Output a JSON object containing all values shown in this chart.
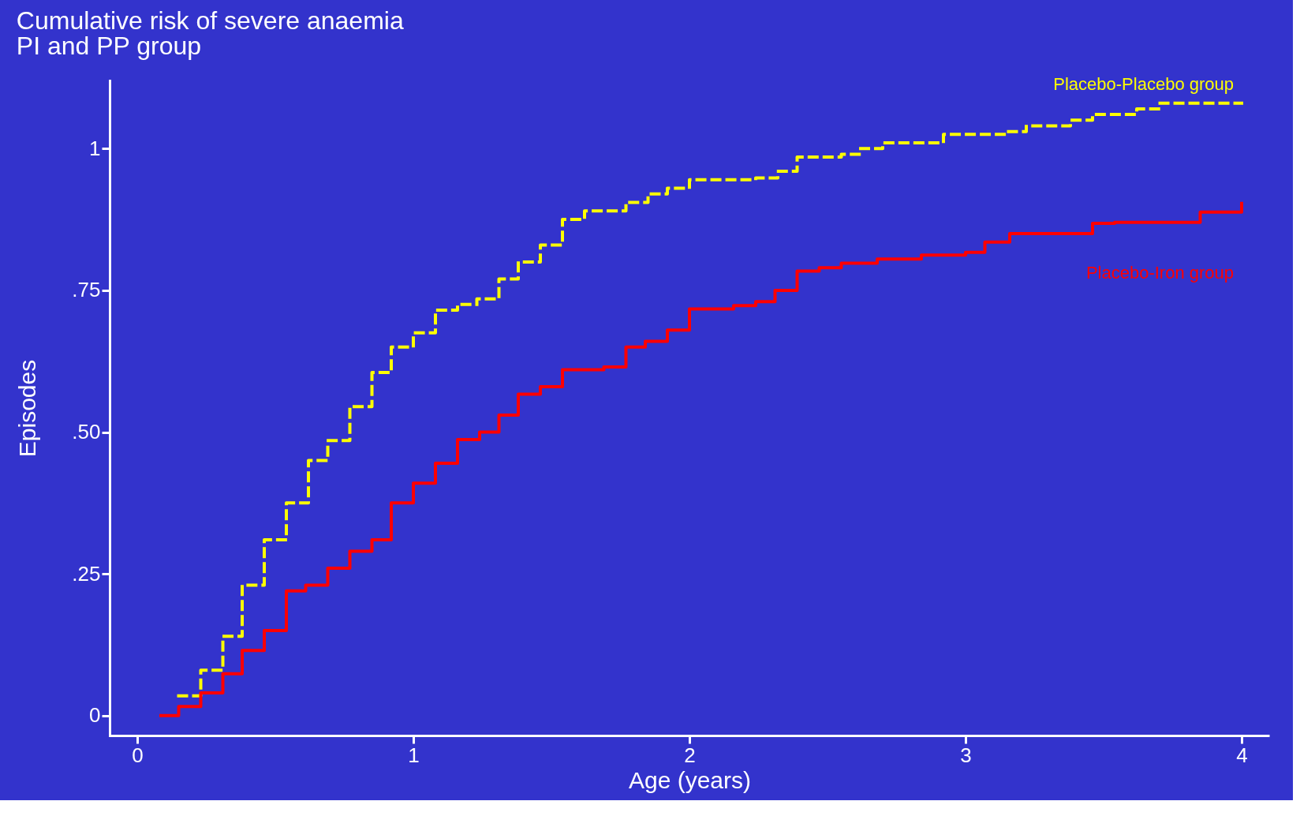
{
  "chart_data": {
    "type": "step",
    "title": "Cumulative risk of severe anaemia",
    "subtitle": "PI and PP group",
    "xlabel": "Age (years)",
    "ylabel": "Episodes",
    "xlim": [
      -0.1,
      4.1
    ],
    "ylim": [
      -0.035,
      1.12
    ],
    "xticks": [
      0,
      1,
      2,
      3,
      4
    ],
    "yticks": [
      0,
      {
        "value": 0.25,
        "label": ".25"
      },
      {
        "value": 0.5,
        "label": ".50"
      },
      {
        "value": 0.75,
        "label": ".75"
      },
      1
    ],
    "grid": false,
    "legend": false,
    "series": [
      {
        "name": "Placebo-Placebo group",
        "color": "#ffff00",
        "line_style": "dashed",
        "x": [
          0.15,
          0.23,
          0.31,
          0.38,
          0.46,
          0.54,
          0.62,
          0.69,
          0.77,
          0.85,
          0.92,
          1.0,
          1.08,
          1.16,
          1.23,
          1.31,
          1.38,
          1.46,
          1.54,
          1.62,
          1.77,
          1.85,
          1.92,
          2.0,
          2.24,
          2.32,
          2.39,
          2.55,
          2.62,
          2.7,
          2.92,
          3.15,
          3.22,
          3.38,
          3.46,
          3.62,
          3.7,
          4.0
        ],
        "values": [
          0.035,
          0.08,
          0.14,
          0.23,
          0.31,
          0.375,
          0.45,
          0.485,
          0.545,
          0.605,
          0.65,
          0.675,
          0.715,
          0.725,
          0.735,
          0.77,
          0.8,
          0.83,
          0.875,
          0.89,
          0.905,
          0.92,
          0.93,
          0.945,
          0.948,
          0.96,
          0.985,
          0.99,
          1.0,
          1.01,
          1.025,
          1.03,
          1.04,
          1.05,
          1.06,
          1.07,
          1.08,
          1.08
        ]
      },
      {
        "name": "Placebo-Iron group",
        "color": "#ff0000",
        "line_style": "solid",
        "x": [
          0.08,
          0.15,
          0.23,
          0.31,
          0.38,
          0.46,
          0.54,
          0.61,
          0.69,
          0.77,
          0.85,
          0.92,
          1.0,
          1.08,
          1.16,
          1.24,
          1.31,
          1.38,
          1.46,
          1.54,
          1.69,
          1.77,
          1.84,
          1.92,
          2.0,
          2.16,
          2.24,
          2.31,
          2.39,
          2.47,
          2.55,
          2.68,
          2.84,
          3.0,
          3.07,
          3.16,
          3.46,
          3.54,
          3.85,
          4.0
        ],
        "values": [
          0,
          0.016,
          0.04,
          0.074,
          0.115,
          0.15,
          0.22,
          0.23,
          0.26,
          0.29,
          0.31,
          0.375,
          0.41,
          0.445,
          0.487,
          0.5,
          0.53,
          0.567,
          0.58,
          0.61,
          0.615,
          0.65,
          0.66,
          0.68,
          0.717,
          0.723,
          0.73,
          0.75,
          0.784,
          0.79,
          0.798,
          0.805,
          0.812,
          0.817,
          0.835,
          0.85,
          0.868,
          0.87,
          0.888,
          0.906
        ]
      }
    ]
  }
}
